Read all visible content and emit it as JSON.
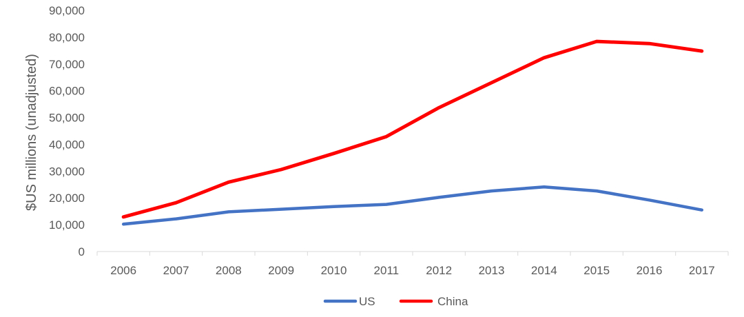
{
  "chart_data": {
    "type": "line",
    "title": "",
    "xlabel": "",
    "ylabel": "$US millions (unadjusted)",
    "ylim": [
      0,
      90000
    ],
    "yticks": [
      0,
      10000,
      20000,
      30000,
      40000,
      50000,
      60000,
      70000,
      80000,
      90000
    ],
    "ytick_labels": [
      "0",
      "10,000",
      "20,000",
      "30,000",
      "40,000",
      "50,000",
      "60,000",
      "70,000",
      "80,000",
      "90,000"
    ],
    "categories": [
      "2006",
      "2007",
      "2008",
      "2009",
      "2010",
      "2011",
      "2012",
      "2013",
      "2014",
      "2015",
      "2016",
      "2017"
    ],
    "grid": false,
    "legend_position": "bottom",
    "series": [
      {
        "name": "US",
        "color": "#4472C4",
        "values": [
          10200,
          12200,
          14800,
          15800,
          16800,
          17600,
          20200,
          22600,
          24100,
          22600,
          19200,
          15500
        ]
      },
      {
        "name": "China",
        "color": "#FF0000",
        "values": [
          12900,
          18200,
          25900,
          30600,
          36600,
          42900,
          53700,
          63000,
          72300,
          78400,
          77600,
          74800
        ]
      }
    ]
  }
}
